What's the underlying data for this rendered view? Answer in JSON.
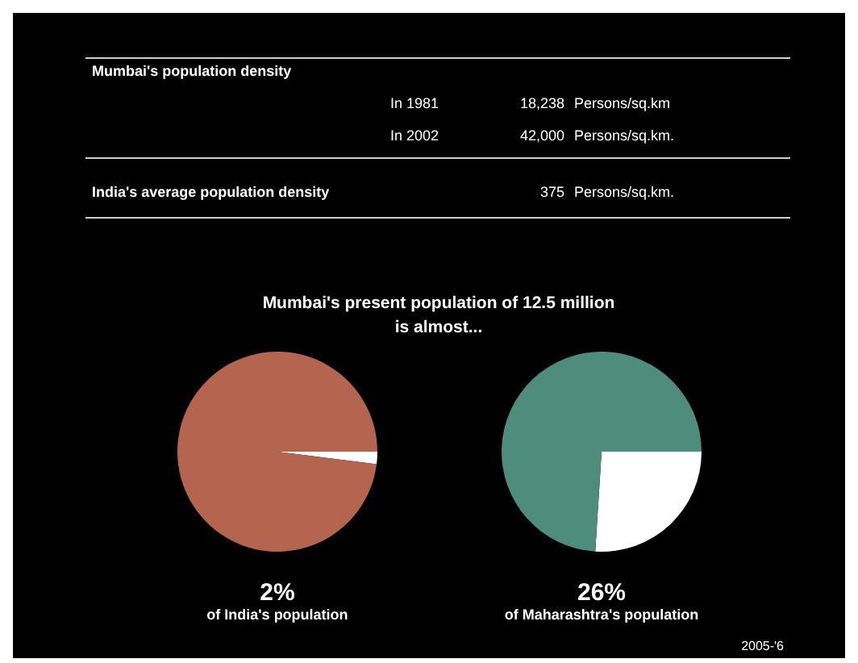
{
  "chart_data": [
    {
      "type": "other",
      "annotations": [
        "Mumbai's population density",
        "In 1981",
        "18,238",
        "Persons/sq.km",
        "In 2002",
        "42,000",
        "Persons/sq.km.",
        "India's average population density",
        "375",
        "Persons/sq.km.",
        "Mumbai's present population of 12.5 million",
        "is almost...",
        "2005-'6"
      ]
    },
    {
      "type": "pie",
      "categories": [
        null,
        null
      ],
      "values": [
        2,
        98
      ],
      "colors": [
        "#ffffff",
        "#b4644f"
      ],
      "annotations": [
        "2%",
        "of India's population"
      ]
    },
    {
      "type": "pie",
      "categories": [
        null,
        null
      ],
      "values": [
        26,
        74
      ],
      "colors": [
        "#ffffff",
        "#4e8c7b"
      ],
      "annotations": [
        "26%",
        "of Maharashtra's population"
      ]
    }
  ]
}
